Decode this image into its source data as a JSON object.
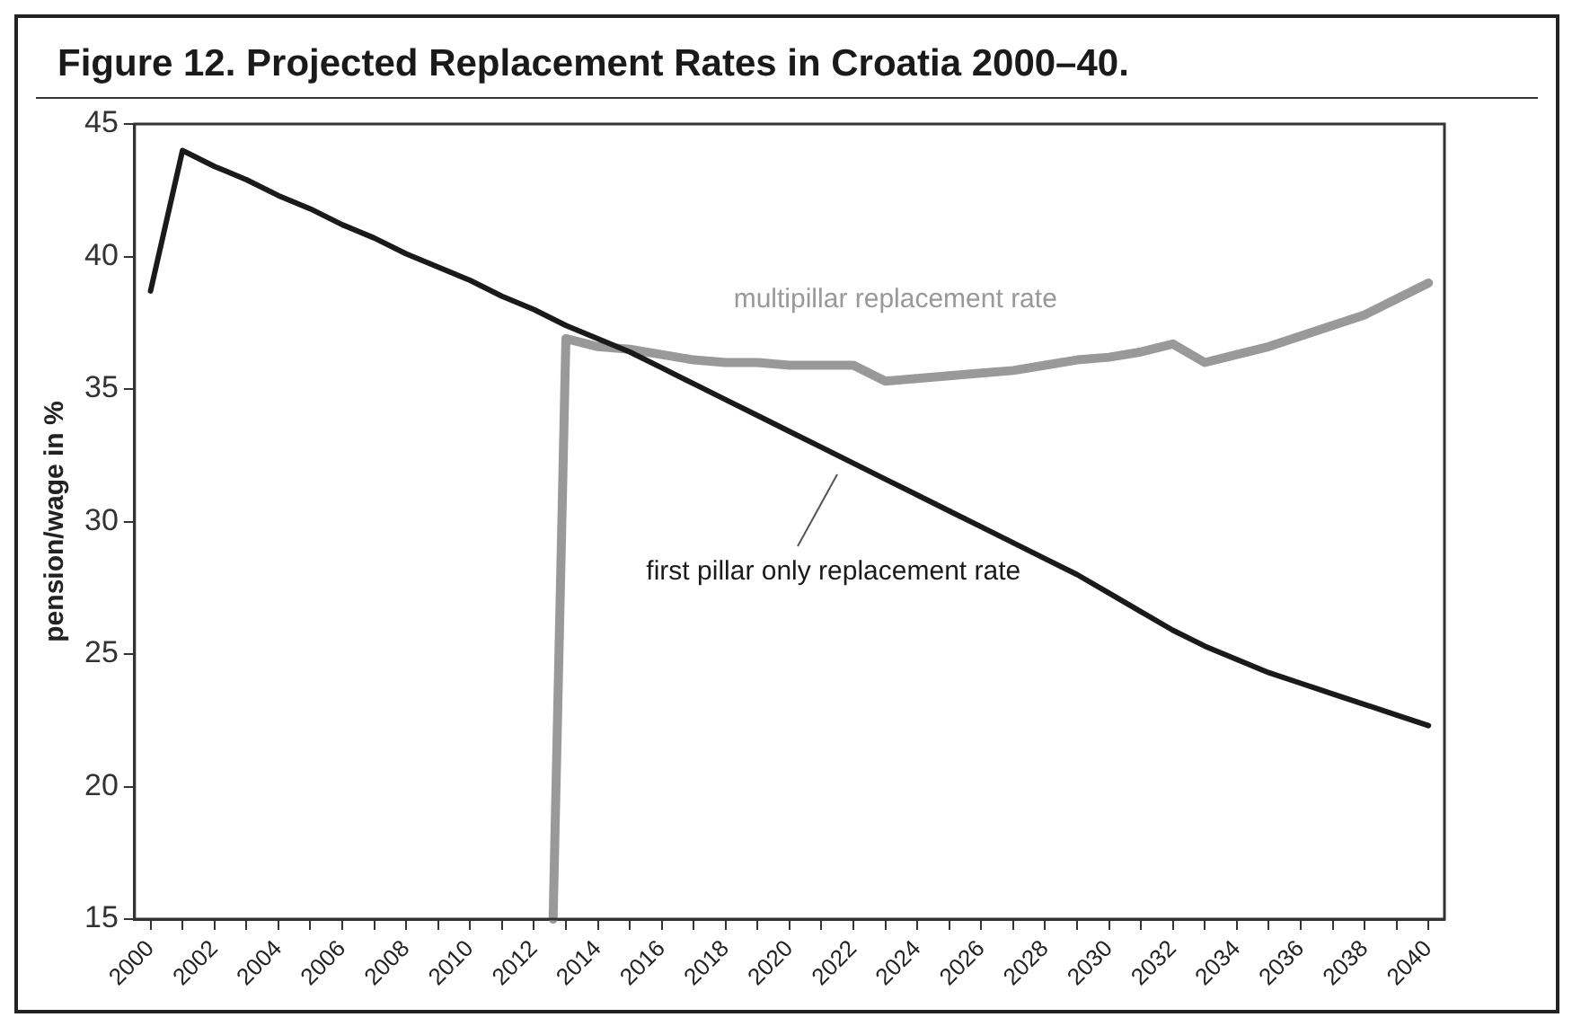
{
  "chart_data": {
    "type": "line",
    "title": "Figure 12.  Projected Replacement Rates in Croatia 2000–40.",
    "ylabel": "pension/wage in %",
    "xlim": [
      1999.5,
      2040.5
    ],
    "xticks": [
      2000,
      {
        "value": 2001,
        "label": null
      },
      2002,
      {
        "value": 2003,
        "label": null
      },
      2004,
      {
        "value": 2005,
        "label": null
      },
      2006,
      {
        "value": 2007,
        "label": null
      },
      2008,
      {
        "value": 2009,
        "label": null
      },
      2010,
      {
        "value": 2011,
        "label": null
      },
      2012,
      {
        "value": 2013,
        "label": null
      },
      2014,
      {
        "value": 2015,
        "label": null
      },
      2016,
      {
        "value": 2017,
        "label": null
      },
      2018,
      {
        "value": 2019,
        "label": null
      },
      2020,
      {
        "value": 2021,
        "label": null
      },
      2022,
      {
        "value": 2023,
        "label": null
      },
      2024,
      {
        "value": 2025,
        "label": null
      },
      2026,
      {
        "value": 2027,
        "label": null
      },
      2028,
      {
        "value": 2029,
        "label": null
      },
      2030,
      {
        "value": 2031,
        "label": null
      },
      2032,
      {
        "value": 2033,
        "label": null
      },
      2034,
      {
        "value": 2035,
        "label": null
      },
      2036,
      {
        "value": 2037,
        "label": null
      },
      2038,
      {
        "value": 2039,
        "label": null
      },
      2040
    ],
    "ylim": [
      15,
      45
    ],
    "yticks": [
      15,
      20,
      25,
      30,
      35,
      40,
      45
    ],
    "grid": false,
    "legend": false,
    "marker": "none",
    "line_style": "solid",
    "series": [
      {
        "name": "first pillar only replacement rate",
        "color": "#1a1a1a",
        "x": [
          2000,
          2001,
          2002,
          2003,
          2004,
          2005,
          2006,
          2007,
          2008,
          2009,
          2010,
          2011,
          2012,
          2013,
          2014,
          2015,
          2016,
          2017,
          2018,
          2019,
          2020,
          2021,
          2022,
          2023,
          2024,
          2025,
          2026,
          2027,
          2028,
          2029,
          2030,
          2031,
          2032,
          2033,
          2034,
          2035,
          2036,
          2037,
          2038,
          2039,
          2040
        ],
        "values": [
          38.7,
          44.0,
          43.4,
          42.9,
          42.3,
          41.8,
          41.2,
          40.7,
          40.1,
          39.6,
          39.1,
          38.5,
          38.0,
          37.4,
          36.9,
          36.4,
          35.8,
          35.2,
          34.6,
          34.0,
          33.4,
          32.8,
          32.2,
          31.6,
          31.0,
          30.4,
          29.8,
          29.2,
          28.6,
          28.0,
          27.3,
          26.6,
          25.9,
          25.3,
          24.8,
          24.3,
          23.9,
          23.5,
          23.1,
          22.7,
          22.3
        ]
      },
      {
        "name": "multipillar replacement rate",
        "color": "#999999",
        "x": [
          2012.6,
          2013,
          2014,
          2015,
          2016,
          2017,
          2018,
          2019,
          2020,
          2021,
          2022,
          2023,
          2024,
          2025,
          2026,
          2027,
          2028,
          2029,
          2030,
          2031,
          2032,
          2033,
          2034,
          2035,
          2036,
          2037,
          2038,
          2039,
          2040
        ],
        "values": [
          15,
          36.9,
          36.6,
          36.5,
          36.3,
          36.1,
          36.0,
          36.0,
          35.9,
          35.9,
          35.9,
          35.3,
          35.4,
          35.5,
          35.6,
          35.7,
          35.9,
          36.1,
          36.2,
          36.4,
          36.7,
          36.0,
          36.3,
          36.6,
          37.0,
          37.4,
          37.8,
          38.4,
          39.0
        ]
      }
    ]
  }
}
